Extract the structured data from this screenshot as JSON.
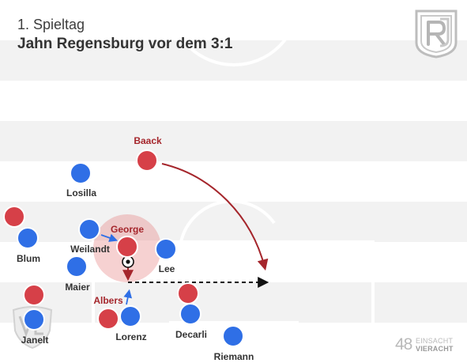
{
  "header": {
    "subtitle": "1. Spieltag",
    "title": "Jahn Regensburg vor dem 3:1"
  },
  "colors": {
    "red_team": "#d64048",
    "blue_team": "#2f6fe6",
    "arrow": "#a5262c",
    "run_arrow": "#2f6fe6",
    "pass_line": "#111111",
    "label_red": "#a5262c",
    "label_blue": "#333333"
  },
  "players": [
    {
      "id": "baack",
      "team": "red",
      "label": "Baack"
    },
    {
      "id": "losilla",
      "team": "blue",
      "label": "Losilla"
    },
    {
      "id": "red-left-1",
      "team": "red",
      "label": ""
    },
    {
      "id": "blum",
      "team": "blue",
      "label": "Blum"
    },
    {
      "id": "weilandt",
      "team": "blue",
      "label": "Weilandt"
    },
    {
      "id": "george",
      "team": "red",
      "label": "George"
    },
    {
      "id": "lee",
      "team": "blue",
      "label": "Lee"
    },
    {
      "id": "maier",
      "team": "blue",
      "label": "Maier"
    },
    {
      "id": "red-left-2",
      "team": "red",
      "label": ""
    },
    {
      "id": "janelt",
      "team": "blue",
      "label": "Janelt"
    },
    {
      "id": "albers",
      "team": "red",
      "label": "Albers"
    },
    {
      "id": "lorenz",
      "team": "blue",
      "label": "Lorenz"
    },
    {
      "id": "red-decarli",
      "team": "red",
      "label": ""
    },
    {
      "id": "decarli",
      "team": "blue",
      "label": "Decarli"
    },
    {
      "id": "riemann",
      "team": "blue",
      "label": "Riemann"
    }
  ],
  "logos": {
    "top_right": "jahn-regensburg-crest",
    "bottom_left": "vfl-bochum-crest"
  },
  "brand": {
    "number": "48",
    "line1": "EINSACHT",
    "line2": "VIERACHT"
  }
}
